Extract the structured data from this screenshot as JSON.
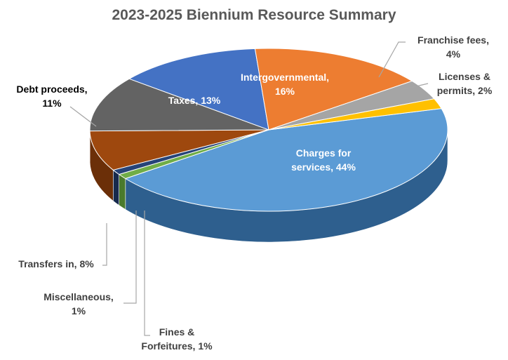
{
  "chart_data": {
    "type": "pie",
    "title": "2023-2025 Biennium Resource Summary",
    "slices": [
      {
        "name": "Charges for services",
        "value": 44,
        "label_lines": [
          "Charges for",
          "services, 44%"
        ],
        "color": "#5b9bd5",
        "side": "#2e5f8e"
      },
      {
        "name": "Fines & Forfeitures",
        "value": 1,
        "label_lines": [
          "Fines &",
          "Forfeitures, 1%"
        ],
        "color": "#70ad47",
        "side": "#4a7a2c"
      },
      {
        "name": "Miscellaneous",
        "value": 1,
        "label_lines": [
          "Miscellaneous,",
          "1%"
        ],
        "color": "#264478",
        "side": "#172a4d"
      },
      {
        "name": "Transfers in",
        "value": 8,
        "label_lines": [
          "Transfers in, 8%"
        ],
        "color": "#9e480e",
        "side": "#6b2f08"
      },
      {
        "name": "Debt proceeds",
        "value": 11,
        "label_lines": [
          "Debt proceeds,",
          "11%"
        ],
        "color": "#636363",
        "side": "#3f3f3f"
      },
      {
        "name": "Taxes",
        "value": 13,
        "label_lines": [
          "Taxes, 13%"
        ],
        "color": "#4472c4",
        "side": "#2c4c88"
      },
      {
        "name": "Intergovernmental",
        "value": 16,
        "label_lines": [
          "Intergovernmental,",
          "16%"
        ],
        "color": "#ed7d31",
        "side": "#b55d20"
      },
      {
        "name": "Franchise fees",
        "value": 4,
        "label_lines": [
          "Franchise fees,",
          "4%"
        ],
        "color": "#a5a5a5",
        "side": "#7a7a7a"
      },
      {
        "name": "Licenses & permits",
        "value": 2,
        "label_lines": [
          "Licenses &",
          "permits, 2%"
        ],
        "color": "#ffc000",
        "side": "#c49000"
      }
    ]
  }
}
